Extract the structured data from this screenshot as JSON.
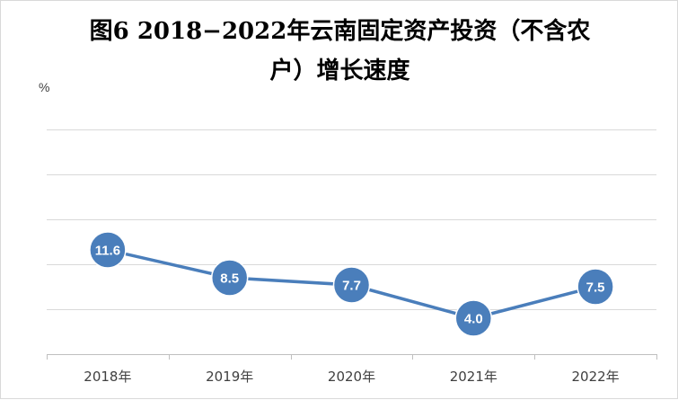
{
  "title_line1": "图6  2018−2022年云南固定资产投资（不含农",
  "title_line2": "户）增长速度",
  "chart_data": {
    "type": "line",
    "title": "图6  2018−2022年云南固定资产投资（不含农户）增长速度",
    "unit": "%",
    "categories": [
      "2018年",
      "2019年",
      "2020年",
      "2021年",
      "2022年"
    ],
    "series": [
      {
        "values": [
          11.6,
          8.5,
          7.7,
          4.0,
          7.5
        ],
        "color": "#4a7ebb",
        "markers": true,
        "data_labels": true
      }
    ],
    "ylim": [
      0,
      25
    ],
    "grid": true,
    "y_tick_labels_shown": false,
    "legend": "none"
  }
}
